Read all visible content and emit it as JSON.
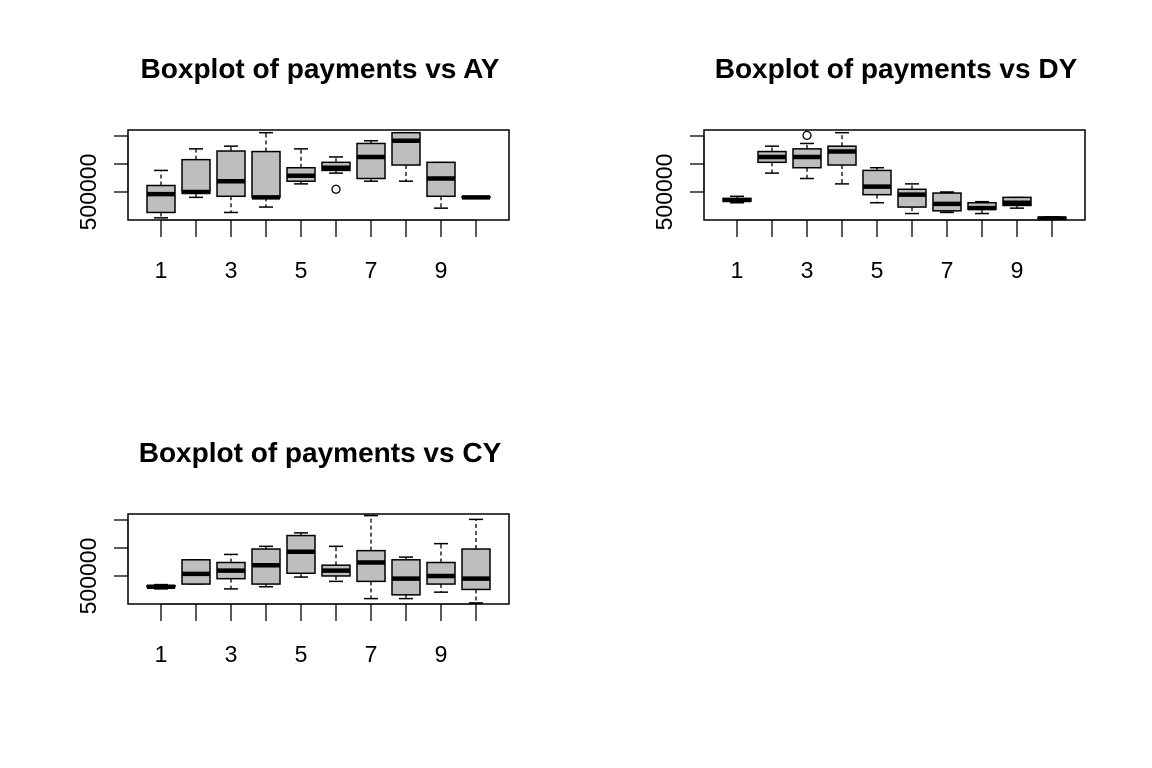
{
  "chart_data": [
    {
      "type": "box",
      "title": "Boxplot of payments vs AY",
      "xlabel": "",
      "ylabel": "",
      "categories": [
        "1",
        "2",
        "3",
        "4",
        "5",
        "6",
        "7",
        "8",
        "9",
        "10"
      ],
      "x_tick_labels": [
        "1",
        "3",
        "5",
        "7",
        "9"
      ],
      "y_tick_labels": [
        "500000"
      ],
      "ylim": [
        280000,
        1950000
      ],
      "boxes": [
        {
          "category": "1",
          "low": 320000,
          "q1": 420000,
          "median": 760000,
          "q3": 920000,
          "high": 1200000,
          "outliers": []
        },
        {
          "category": "2",
          "low": 700000,
          "q1": 780000,
          "median": 800000,
          "q3": 1400000,
          "high": 1600000,
          "outliers": []
        },
        {
          "category": "3",
          "low": 420000,
          "q1": 720000,
          "median": 1000000,
          "q3": 1560000,
          "high": 1650000,
          "outliers": []
        },
        {
          "category": "4",
          "low": 520000,
          "q1": 700000,
          "median": 700000,
          "q3": 1550000,
          "high": 1900000,
          "outliers": []
        },
        {
          "category": "5",
          "low": 950000,
          "q1": 1000000,
          "median": 1100000,
          "q3": 1250000,
          "high": 1600000,
          "outliers": []
        },
        {
          "category": "6",
          "low": 1150000,
          "q1": 1200000,
          "median": 1250000,
          "q3": 1350000,
          "high": 1450000,
          "outliers": [
            850000
          ]
        },
        {
          "category": "7",
          "low": 1000000,
          "q1": 1050000,
          "median": 1450000,
          "q3": 1700000,
          "high": 1750000,
          "outliers": []
        },
        {
          "category": "8",
          "low": 1000000,
          "q1": 1300000,
          "median": 1750000,
          "q3": 1900000,
          "high": 1900000,
          "outliers": []
        },
        {
          "category": "9",
          "low": 500000,
          "q1": 720000,
          "median": 1050000,
          "q3": 1350000,
          "high": 1350000,
          "outliers": []
        },
        {
          "category": "10",
          "low": 690000,
          "q1": 700000,
          "median": 700000,
          "q3": 710000,
          "high": 720000,
          "outliers": []
        }
      ]
    },
    {
      "type": "box",
      "title": "Boxplot of payments vs DY",
      "xlabel": "",
      "ylabel": "",
      "categories": [
        "1",
        "2",
        "3",
        "4",
        "5",
        "6",
        "7",
        "8",
        "9",
        "10"
      ],
      "x_tick_labels": [
        "1",
        "3",
        "5",
        "7",
        "9"
      ],
      "y_tick_labels": [
        "500000"
      ],
      "ylim": [
        280000,
        1950000
      ],
      "boxes": [
        {
          "category": "1",
          "low": 600000,
          "q1": 630000,
          "median": 650000,
          "q3": 680000,
          "high": 720000,
          "outliers": []
        },
        {
          "category": "2",
          "low": 1150000,
          "q1": 1350000,
          "median": 1450000,
          "q3": 1550000,
          "high": 1650000,
          "outliers": []
        },
        {
          "category": "3",
          "low": 1050000,
          "q1": 1250000,
          "median": 1450000,
          "q3": 1600000,
          "high": 1700000,
          "outliers": [
            1850000
          ]
        },
        {
          "category": "4",
          "low": 950000,
          "q1": 1300000,
          "median": 1550000,
          "q3": 1650000,
          "high": 1900000,
          "outliers": []
        },
        {
          "category": "5",
          "low": 600000,
          "q1": 750000,
          "median": 900000,
          "q3": 1200000,
          "high": 1250000,
          "outliers": []
        },
        {
          "category": "6",
          "low": 400000,
          "q1": 520000,
          "median": 750000,
          "q3": 850000,
          "high": 950000,
          "outliers": []
        },
        {
          "category": "7",
          "low": 420000,
          "q1": 450000,
          "median": 580000,
          "q3": 780000,
          "high": 800000,
          "outliers": []
        },
        {
          "category": "8",
          "low": 400000,
          "q1": 480000,
          "median": 500000,
          "q3": 600000,
          "high": 620000,
          "outliers": []
        },
        {
          "category": "9",
          "low": 500000,
          "q1": 550000,
          "median": 600000,
          "q3": 700000,
          "high": 700000,
          "outliers": []
        },
        {
          "category": "10",
          "low": 300000,
          "q1": 310000,
          "median": 310000,
          "q3": 330000,
          "high": 340000,
          "outliers": []
        }
      ]
    },
    {
      "type": "box",
      "title": "Boxplot of payments vs CY",
      "xlabel": "",
      "ylabel": "",
      "categories": [
        "1",
        "2",
        "3",
        "4",
        "5",
        "6",
        "7",
        "8",
        "9",
        "10"
      ],
      "x_tick_labels": [
        "1",
        "3",
        "5",
        "7",
        "9"
      ],
      "y_tick_labels": [
        "500000"
      ],
      "ylim": [
        280000,
        1950000
      ],
      "boxes": [
        {
          "category": "1",
          "low": 560000,
          "q1": 600000,
          "median": 600000,
          "q3": 620000,
          "high": 640000,
          "outliers": []
        },
        {
          "category": "2",
          "low": 650000,
          "q1": 650000,
          "median": 840000,
          "q3": 1100000,
          "high": 1100000,
          "outliers": []
        },
        {
          "category": "3",
          "low": 560000,
          "q1": 750000,
          "median": 900000,
          "q3": 1050000,
          "high": 1200000,
          "outliers": []
        },
        {
          "category": "4",
          "low": 600000,
          "q1": 650000,
          "median": 1000000,
          "q3": 1300000,
          "high": 1350000,
          "outliers": []
        },
        {
          "category": "5",
          "low": 780000,
          "q1": 850000,
          "median": 1250000,
          "q3": 1550000,
          "high": 1600000,
          "outliers": []
        },
        {
          "category": "6",
          "low": 700000,
          "q1": 800000,
          "median": 900000,
          "q3": 1000000,
          "high": 1350000,
          "outliers": []
        },
        {
          "category": "7",
          "low": 380000,
          "q1": 700000,
          "median": 1050000,
          "q3": 1270000,
          "high": 1920000,
          "outliers": []
        },
        {
          "category": "8",
          "low": 380000,
          "q1": 450000,
          "median": 750000,
          "q3": 1100000,
          "high": 1150000,
          "outliers": []
        },
        {
          "category": "9",
          "low": 500000,
          "q1": 650000,
          "median": 800000,
          "q3": 1050000,
          "high": 1400000,
          "outliers": []
        },
        {
          "category": "10",
          "low": 300000,
          "q1": 550000,
          "median": 750000,
          "q3": 1300000,
          "high": 1850000,
          "outliers": []
        }
      ]
    }
  ]
}
